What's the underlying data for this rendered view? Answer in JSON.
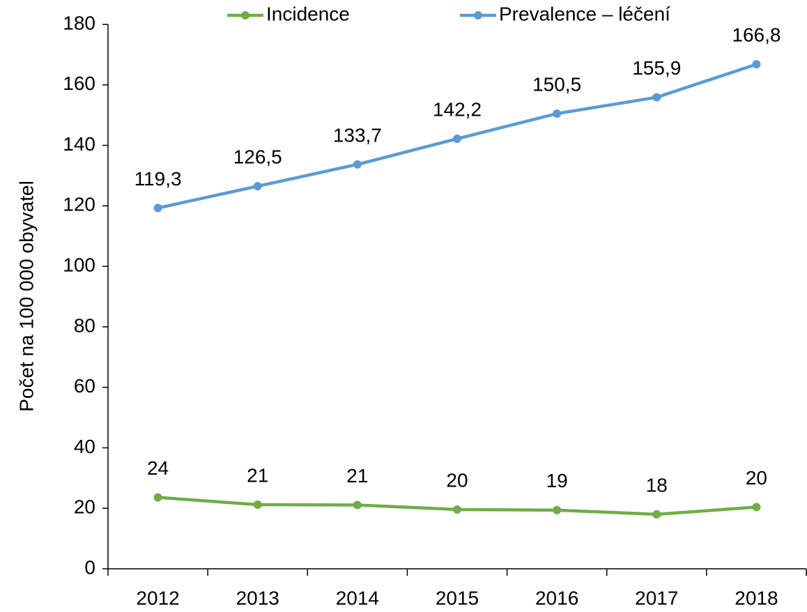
{
  "chart_data": {
    "type": "line",
    "y_label": "Počet na 100 000 obyvatel",
    "categories": [
      "2012",
      "2013",
      "2014",
      "2015",
      "2016",
      "2017",
      "2018"
    ],
    "series": [
      {
        "name": "Incidence",
        "color": "#70ad47",
        "values": [
          23.6,
          21.2,
          21.1,
          19.6,
          19.4,
          18.0,
          20.4
        ],
        "value_labels": [
          "24",
          "21",
          "21",
          "20",
          "19",
          "18",
          "20"
        ]
      },
      {
        "name": "Prevalence – léčení",
        "color": "#5b9bd5",
        "values": [
          119.3,
          126.5,
          133.7,
          142.2,
          150.5,
          155.9,
          166.8
        ],
        "value_labels": [
          "119,3",
          "126,5",
          "133,7",
          "142,2",
          "150,5",
          "155,9",
          "166,8"
        ]
      }
    ],
    "ylim": [
      0,
      180
    ],
    "yticks": [
      0,
      20,
      40,
      60,
      80,
      100,
      120,
      140,
      160,
      180
    ],
    "grid": false,
    "legend": "top"
  }
}
